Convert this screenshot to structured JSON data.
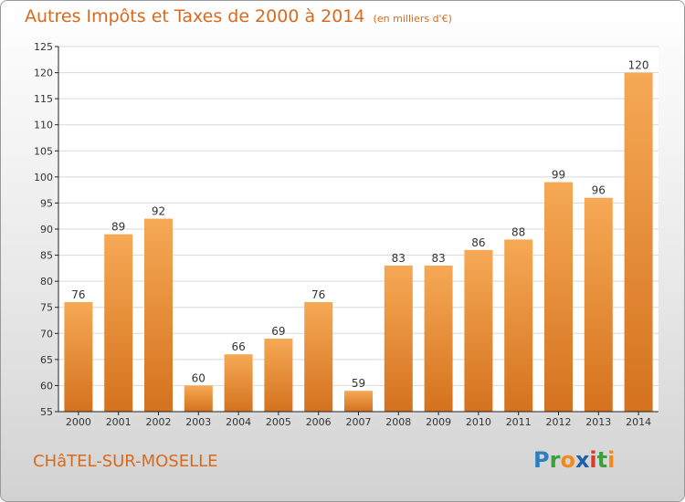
{
  "header": {
    "title": "Autres Impôts et Taxes de 2000 à 2014",
    "unit": "(en milliers d'€)"
  },
  "footer": {
    "commune": "CHâTEL-SUR-MOSELLE",
    "logo": {
      "letters": [
        "P",
        "r",
        "o",
        "x",
        "i",
        "t",
        "i"
      ],
      "colors": [
        "#2b7fc0",
        "#3aa13a",
        "#f08a1c",
        "#1f5fa8",
        "#d93a2a",
        "#3aa13a",
        "#f08a1c"
      ]
    }
  },
  "colors": {
    "bar_light": "#f6a955",
    "bar_dark": "#d4721e",
    "text_accent": "#d96a1c",
    "axis": "#222222",
    "grid": "#d8d8d8"
  },
  "chart_data": {
    "type": "bar",
    "title": "Autres Impôts et Taxes de 2000 à 2014",
    "categories": [
      "2000",
      "2001",
      "2002",
      "2003",
      "2004",
      "2005",
      "2006",
      "2007",
      "2008",
      "2009",
      "2010",
      "2011",
      "2012",
      "2013",
      "2014"
    ],
    "values": [
      76,
      89,
      92,
      60,
      66,
      69,
      76,
      59,
      83,
      83,
      86,
      88,
      99,
      96,
      120
    ],
    "ylim": [
      55,
      125
    ],
    "yticks": [
      55,
      60,
      65,
      70,
      75,
      80,
      85,
      90,
      95,
      100,
      105,
      110,
      115,
      120,
      125
    ],
    "xlabel": "",
    "ylabel": "",
    "grid": true,
    "data_labels": true
  }
}
